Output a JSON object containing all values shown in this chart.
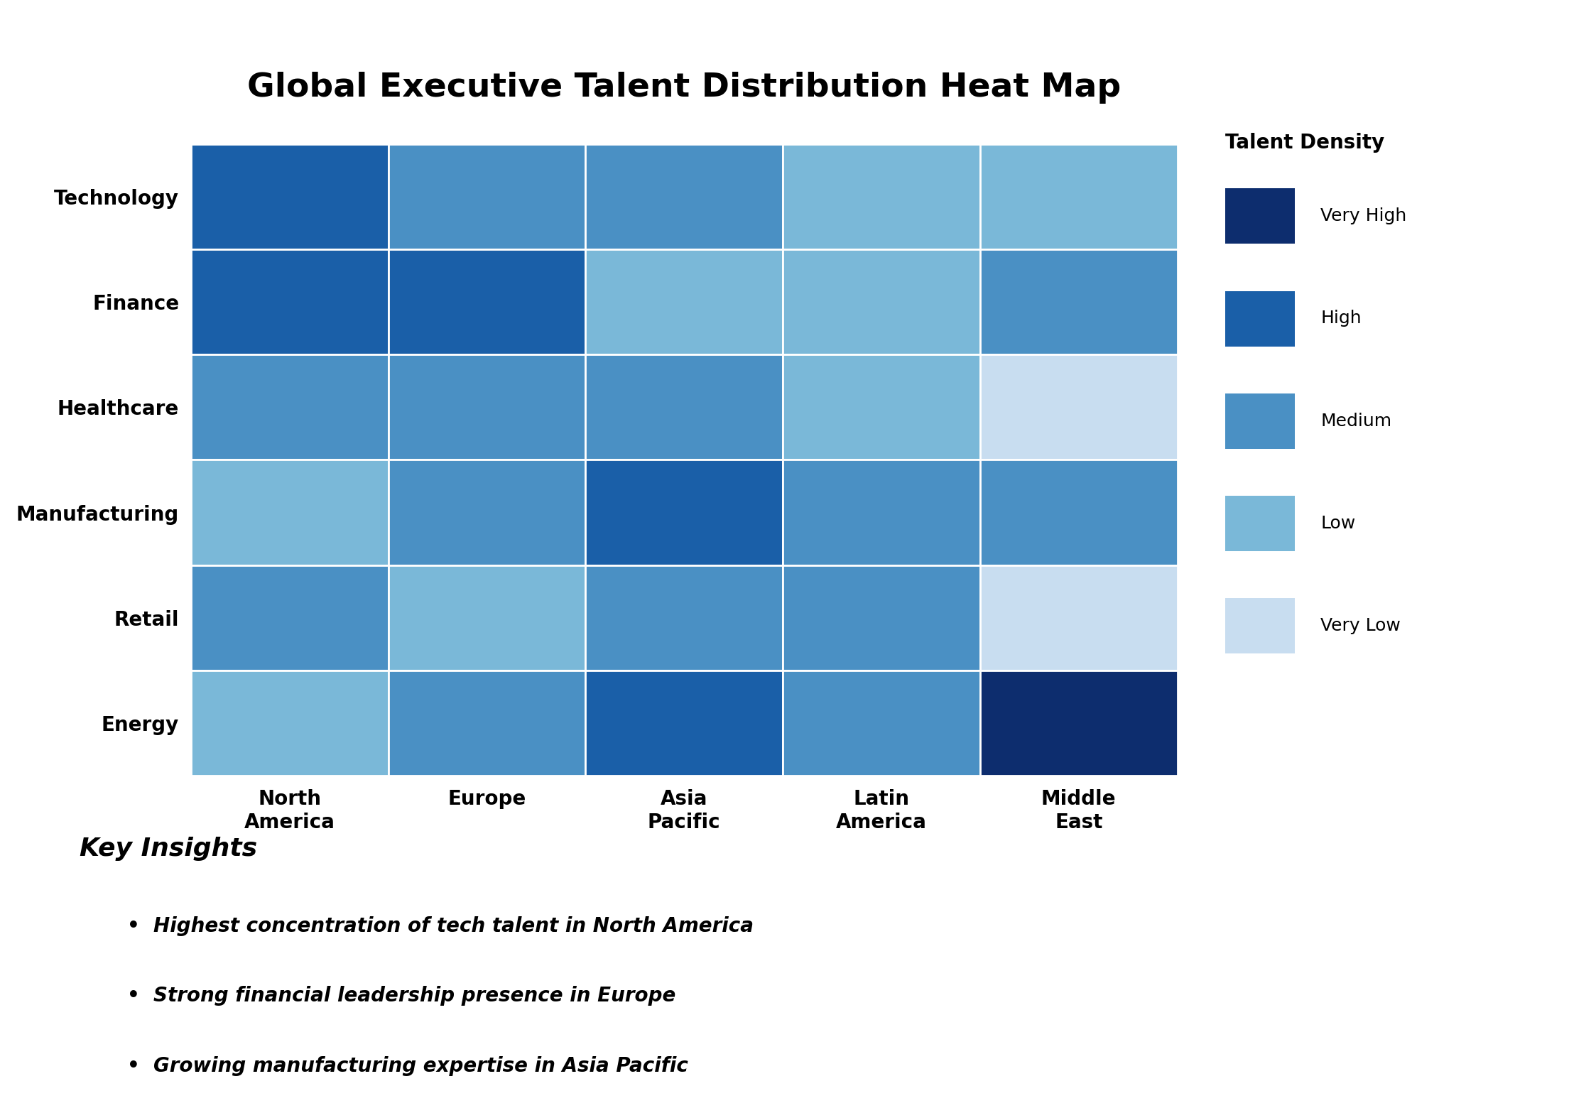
{
  "title": "Global Executive Talent Distribution Heat Map",
  "rows": [
    "Technology",
    "Finance",
    "Healthcare",
    "Manufacturing",
    "Retail",
    "Energy"
  ],
  "cols": [
    "North\nAmerica",
    "Europe",
    "Asia\nPacific",
    "Latin\nAmerica",
    "Middle\nEast"
  ],
  "data": [
    [
      4,
      3,
      3,
      2,
      2
    ],
    [
      4,
      4,
      2,
      2,
      3
    ],
    [
      3,
      3,
      3,
      2,
      1
    ],
    [
      2,
      3,
      4,
      3,
      3
    ],
    [
      3,
      2,
      3,
      3,
      1
    ],
    [
      2,
      3,
      4,
      3,
      5
    ]
  ],
  "legend_labels": [
    "Very High",
    "High",
    "Medium",
    "Low",
    "Very Low"
  ],
  "legend_values": [
    5,
    4,
    3,
    2,
    1
  ],
  "color_levels": {
    "5": "#0d2d6e",
    "4": "#1a5fa8",
    "3": "#4a90c4",
    "2": "#7ab8d8",
    "1": "#c8ddf0"
  },
  "insights_title": "Key Insights",
  "insights": [
    "Highest concentration of tech talent in North America",
    "Strong financial leadership presence in Europe",
    "Growing manufacturing expertise in Asia Pacific"
  ],
  "background_color": "#ffffff",
  "title_fontsize": 34,
  "label_fontsize": 20,
  "legend_title_fontsize": 20,
  "legend_fontsize": 18,
  "insights_title_fontsize": 26,
  "insights_fontsize": 20
}
